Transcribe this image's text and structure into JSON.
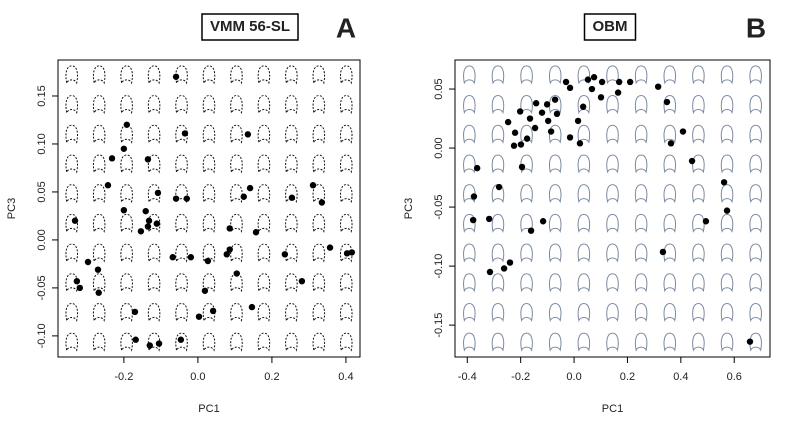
{
  "chart_data": [
    {
      "type": "scatter",
      "title": "VMM 56-SL",
      "panel_label": "A",
      "x_label": "PC1",
      "y_label": "PC3",
      "color": "#000000",
      "shape_color": "#111111",
      "shape_dashed": true,
      "xlim": [
        -0.378,
        0.438
      ],
      "ylim": [
        -0.122,
        0.1875
      ],
      "xticks": [
        -0.2,
        {
          "value": 0,
          "label": "0.0"
        },
        0.2,
        0.4
      ],
      "yticks": [
        {
          "value": -0.1,
          "label": "-0.10"
        },
        -0.05,
        {
          "value": 0,
          "label": "0.00"
        },
        0.05,
        {
          "value": 0.1,
          "label": "0.10"
        },
        0.15
      ],
      "x": [
        -0.059,
        -0.192,
        -0.035,
        0.135,
        -0.2,
        -0.232,
        -0.135,
        -0.243,
        0.141,
        0.311,
        -0.108,
        -0.059,
        -0.03,
        0.124,
        -0.2,
        -0.141,
        0.254,
        0.335,
        -0.332,
        -0.132,
        -0.111,
        -0.154,
        -0.135,
        0.157,
        0.086,
        0.357,
        0.416,
        0.403,
        0.235,
        0.086,
        0.078,
        -0.068,
        -0.019,
        0.027,
        -0.297,
        -0.27,
        0.105,
        -0.327,
        0.281,
        -0.319,
        0.019,
        -0.268,
        0.146,
        -0.17,
        0.041,
        0.003,
        -0.168,
        -0.046,
        -0.105,
        -0.13
      ],
      "values": [
        0.17,
        0.12,
        0.111,
        0.11,
        0.095,
        0.085,
        0.084,
        0.057,
        0.054,
        0.057,
        0.049,
        0.043,
        0.043,
        0.045,
        0.031,
        0.03,
        0.044,
        0.039,
        0.02,
        0.02,
        0.017,
        0.009,
        0.014,
        0.008,
        0.012,
        -0.008,
        -0.013,
        -0.014,
        -0.015,
        -0.01,
        -0.015,
        -0.018,
        -0.018,
        -0.022,
        -0.023,
        -0.031,
        -0.035,
        -0.043,
        -0.043,
        -0.05,
        -0.053,
        -0.055,
        -0.07,
        -0.075,
        -0.074,
        -0.08,
        -0.104,
        -0.104,
        -0.108,
        -0.11
      ]
    },
    {
      "type": "scatter",
      "title": "OBM",
      "panel_label": "B",
      "x_label": "PC1",
      "y_label": "PC3",
      "color": "#000000",
      "shape_color": "#7a8aa0",
      "shape_dashed": false,
      "xlim": [
        -0.446,
        0.734
      ],
      "ylim": [
        -0.177,
        0.0746
      ],
      "xticks": [
        -0.4,
        -0.2,
        {
          "value": 0,
          "label": "0.0"
        },
        0.2,
        0.4,
        0.6
      ],
      "yticks": [
        -0.15,
        {
          "value": -0.1,
          "label": "-0.10"
        },
        -0.05,
        {
          "value": 0,
          "label": "0.00"
        },
        0.05
      ],
      "x": [
        0.075,
        -0.03,
        0.169,
        0.21,
        0.105,
        -0.015,
        0.052,
        0.067,
        0.101,
        0.165,
        0.315,
        0.348,
        -0.142,
        -0.071,
        -0.101,
        -0.202,
        -0.12,
        -0.064,
        0.034,
        -0.247,
        -0.165,
        -0.097,
        0.015,
        -0.146,
        -0.221,
        0.408,
        -0.086,
        -0.015,
        -0.176,
        -0.199,
        0.022,
        -0.225,
        0.363,
        0.442,
        -0.363,
        -0.195,
        0.562,
        -0.281,
        -0.375,
        0.573,
        -0.318,
        -0.378,
        -0.116,
        0.494,
        -0.161,
        0.333,
        -0.24,
        -0.262,
        -0.315,
        0.659
      ],
      "values": [
        0.06,
        0.056,
        0.056,
        0.056,
        0.056,
        0.051,
        0.058,
        0.05,
        0.043,
        0.047,
        0.052,
        0.039,
        0.038,
        0.041,
        0.037,
        0.031,
        0.03,
        0.029,
        0.035,
        0.022,
        0.025,
        0.023,
        0.023,
        0.017,
        0.013,
        0.014,
        0.014,
        0.009,
        0.008,
        0.003,
        0.004,
        0.002,
        0.004,
        -0.011,
        -0.017,
        -0.016,
        -0.029,
        -0.033,
        -0.041,
        -0.053,
        -0.06,
        -0.061,
        -0.062,
        -0.062,
        -0.07,
        -0.088,
        -0.097,
        -0.102,
        -0.105,
        -0.164
      ]
    }
  ]
}
